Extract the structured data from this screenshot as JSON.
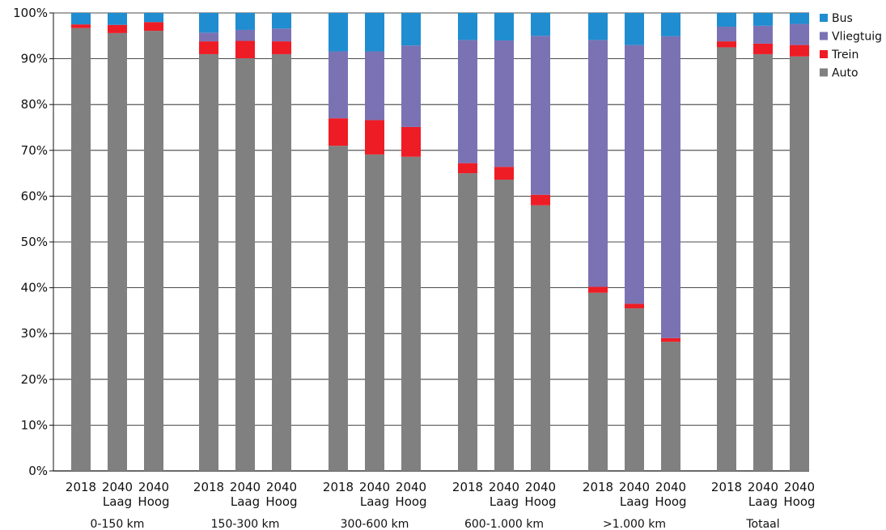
{
  "chart_data": {
    "type": "bar",
    "stacked": true,
    "percent_stacked": true,
    "title": "",
    "xlabel": "",
    "ylabel": "",
    "ylim": [
      0,
      100
    ],
    "y_tick_labels": [
      "0%",
      "10%",
      "20%",
      "30%",
      "40%",
      "50%",
      "60%",
      "70%",
      "80%",
      "90%",
      "100%"
    ],
    "grid": "horizontal",
    "legend_position": "right",
    "groups": [
      "0-150 km",
      "150-300 km",
      "300-600 km",
      "600-1.000 km",
      ">1.000 km",
      "Totaal"
    ],
    "scenarios": [
      [
        "2018"
      ],
      [
        "2040",
        "Laag"
      ],
      [
        "2040",
        "Hoog"
      ]
    ],
    "legend": [
      {
        "name": "Bus",
        "color": "#1f8dd0"
      },
      {
        "name": "Vliegtuig",
        "color": "#7b72b4"
      },
      {
        "name": "Trein",
        "color": "#ee1c25"
      },
      {
        "name": "Auto",
        "color": "#808080"
      }
    ],
    "series": [
      {
        "name": "Auto",
        "color": "#808080",
        "values": [
          96.7,
          95.6,
          96.1,
          91.0,
          90.1,
          91.0,
          71.0,
          69.1,
          68.6,
          65.0,
          63.6,
          58.0,
          38.9,
          35.5,
          28.2,
          92.5,
          91.0,
          90.5
        ]
      },
      {
        "name": "Trein",
        "color": "#ee1c25",
        "values": [
          0.8,
          1.8,
          1.9,
          2.8,
          3.8,
          2.8,
          6.0,
          7.5,
          6.5,
          2.2,
          2.8,
          2.3,
          1.3,
          1.0,
          0.8,
          1.3,
          2.3,
          2.5
        ]
      },
      {
        "name": "Vliegtuig",
        "color": "#7b72b4",
        "values": [
          0.0,
          0.0,
          0.0,
          1.9,
          2.4,
          2.8,
          14.6,
          15.0,
          17.8,
          26.9,
          27.6,
          34.7,
          53.9,
          56.5,
          65.9,
          3.2,
          3.9,
          4.6
        ]
      },
      {
        "name": "Bus",
        "color": "#1f8dd0",
        "values": [
          2.5,
          2.6,
          2.0,
          4.3,
          3.7,
          3.4,
          8.4,
          8.4,
          7.1,
          5.9,
          6.0,
          5.0,
          5.9,
          7.0,
          5.1,
          3.0,
          2.8,
          2.4
        ]
      }
    ]
  }
}
